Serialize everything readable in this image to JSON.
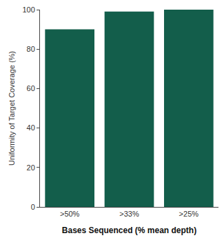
{
  "chart_data": {
    "type": "bar",
    "x_label": "Bases Sequenced (% mean depth)",
    "y_label": "Uniformity of Target Coverage (%)",
    "categories": [
      ">50%",
      ">33%",
      ">25%"
    ],
    "values": [
      90,
      99,
      100
    ],
    "color": "#135e4b",
    "ylim": [
      0,
      100
    ],
    "yticks": [
      0,
      20,
      40,
      60,
      80,
      100
    ],
    "grid": false
  }
}
